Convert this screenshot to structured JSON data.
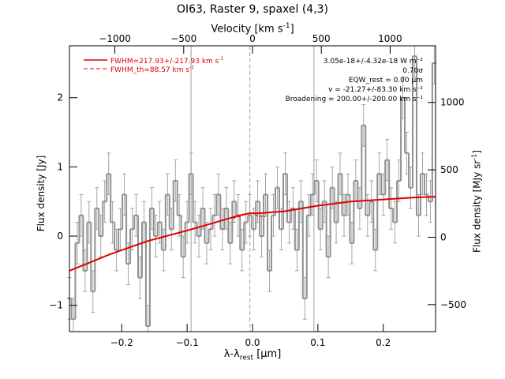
{
  "figure": {
    "title": "OI63, Raster 9, spaxel (4,3)",
    "top_axis_label": "Velocity [km s",
    "top_axis_label_sup": "-1",
    "top_axis_label_end": "]",
    "bottom_axis_label_main": "λ-λ",
    "bottom_axis_label_sub": "rest",
    "bottom_axis_label_unit": " [μm]",
    "left_axis_label": "Flux density [Jy]",
    "right_axis_label": "Flux density [MJy sr",
    "right_axis_label_sup": "-1",
    "right_axis_label_end": "]"
  },
  "legend": {
    "fit_label": "FWHM=217.93+/-217.93 km s",
    "fit_sup": "-1",
    "theory_label": "FWHM_th=88.57 km s",
    "theory_sup": "-1"
  },
  "annotations": [
    "3.05e-18+/-4.32e-18 W m⁻²",
    "0.70σ",
    "EQW_rest = 0.00 μm",
    "v = -21.27+/-83.30 km s⁻¹",
    "Broadening = 200.00+/-200.00 km s⁻¹"
  ],
  "colors": {
    "data": "#909090",
    "fit": "#e00000",
    "axes": "#000000",
    "guides": "#a0a0a0"
  },
  "chart_data": {
    "type": "line",
    "title": "OI63, Raster 9, spaxel (4,3)",
    "xlabel": "λ-λrest [μm]",
    "ylabel": "Flux density [Jy]",
    "xlim": [
      -0.28,
      0.28
    ],
    "ylim": [
      -1.38,
      2.75
    ],
    "top_axis": {
      "label": "Velocity [km s-1]",
      "range": [
        -1330,
        1330
      ],
      "ticks": [
        -1000,
        -500,
        0,
        500,
        1000
      ],
      "tick_labels": [
        "−1000",
        "−500",
        "0",
        "500",
        "1000"
      ]
    },
    "right_axis": {
      "label": "Flux density [MJy sr-1]",
      "range": [
        -700,
        1420
      ],
      "ticks": [
        -500,
        0,
        500,
        1000
      ],
      "tick_labels": [
        "−500",
        "0",
        "500",
        "1000"
      ]
    },
    "x_ticks": [
      -0.2,
      -0.1,
      0.0,
      0.1,
      0.2
    ],
    "x_tick_labels": [
      "−0.2",
      "−0.1",
      "0.0",
      "0.1",
      "0.2"
    ],
    "y_ticks": [
      -1,
      0,
      1,
      2
    ],
    "y_tick_labels": [
      "−1",
      "0",
      "1",
      "2"
    ],
    "vertical_lines": [
      {
        "x": -0.094,
        "style": "solid"
      },
      {
        "x": -0.004,
        "style": "dashed"
      },
      {
        "x": 0.094,
        "style": "solid"
      }
    ],
    "series": [
      {
        "style": "histogram",
        "x": [
          -0.28,
          -0.274,
          -0.268,
          -0.262,
          -0.256,
          -0.25,
          -0.244,
          -0.238,
          -0.232,
          -0.226,
          -0.22,
          -0.214,
          -0.208,
          -0.202,
          -0.196,
          -0.19,
          -0.184,
          -0.178,
          -0.172,
          -0.166,
          -0.16,
          -0.154,
          -0.148,
          -0.142,
          -0.136,
          -0.13,
          -0.124,
          -0.118,
          -0.112,
          -0.106,
          -0.1,
          -0.094,
          -0.088,
          -0.082,
          -0.076,
          -0.07,
          -0.064,
          -0.058,
          -0.052,
          -0.046,
          -0.04,
          -0.034,
          -0.028,
          -0.022,
          -0.016,
          -0.01,
          -0.004,
          0.002,
          0.008,
          0.014,
          0.02,
          0.026,
          0.032,
          0.038,
          0.044,
          0.05,
          0.056,
          0.062,
          0.068,
          0.074,
          0.08,
          0.086,
          0.092,
          0.098,
          0.104,
          0.11,
          0.116,
          0.122,
          0.128,
          0.134,
          0.14,
          0.146,
          0.152,
          0.158,
          0.164,
          0.17,
          0.176,
          0.182,
          0.188,
          0.194,
          0.2,
          0.206,
          0.212,
          0.218,
          0.224,
          0.23,
          0.236,
          0.242,
          0.248,
          0.254,
          0.26,
          0.266,
          0.272,
          0.278
        ],
        "y": [
          -0.9,
          -1.2,
          -0.1,
          0.3,
          -0.5,
          0.2,
          -0.8,
          0.4,
          0.0,
          0.5,
          0.9,
          0.2,
          -0.2,
          0.1,
          0.6,
          -0.4,
          0.1,
          0.3,
          -0.6,
          0.2,
          -1.3,
          0.4,
          0.0,
          0.2,
          -0.2,
          0.6,
          0.1,
          0.8,
          0.3,
          -0.3,
          0.2,
          0.9,
          0.2,
          0.0,
          0.4,
          -0.1,
          0.1,
          0.3,
          0.6,
          0.1,
          0.4,
          -0.1,
          0.5,
          0.3,
          -0.2,
          0.2,
          0.3,
          0.1,
          0.5,
          0.0,
          0.6,
          -0.5,
          0.3,
          0.7,
          0.1,
          0.9,
          0.2,
          0.4,
          -0.2,
          0.5,
          -0.9,
          0.3,
          0.6,
          0.8,
          0.1,
          0.5,
          -0.3,
          0.7,
          0.2,
          0.9,
          0.3,
          0.6,
          -0.1,
          0.8,
          0.4,
          1.6,
          0.3,
          0.5,
          -0.2,
          0.9,
          0.6,
          1.1,
          0.4,
          0.2,
          0.8,
          2.0,
          1.2,
          0.7,
          2.6,
          0.3,
          0.9,
          0.6,
          0.5,
          2.5
        ],
        "errors": 0.3
      },
      {
        "style": "line",
        "x": [
          -0.28,
          -0.22,
          -0.16,
          -0.1,
          -0.06,
          -0.02,
          -0.004,
          0.01,
          0.05,
          0.1,
          0.15,
          0.2,
          0.25,
          0.28
        ],
        "y": [
          -0.5,
          -0.27,
          -0.07,
          0.08,
          0.19,
          0.3,
          0.33,
          0.33,
          0.36,
          0.44,
          0.5,
          0.53,
          0.56,
          0.57
        ]
      },
      {
        "style": "dashed",
        "x": [
          -0.03,
          -0.02,
          -0.01,
          -0.004,
          0.002,
          0.008,
          0.02
        ],
        "y": [
          0.26,
          0.28,
          0.32,
          0.34,
          0.32,
          0.29,
          0.28
        ]
      }
    ]
  }
}
